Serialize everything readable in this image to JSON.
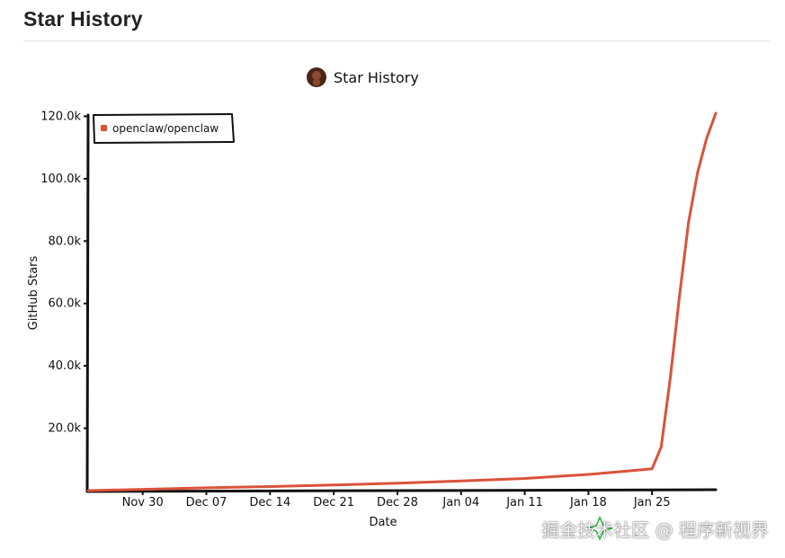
{
  "page": {
    "title": "Star History"
  },
  "chart_data": {
    "type": "line",
    "title": "Star History",
    "xlabel": "Date",
    "ylabel": "GitHub Stars",
    "x_tick_labels": [
      "Nov 30",
      "Dec 07",
      "Dec 14",
      "Dec 21",
      "Dec 28",
      "Jan 04",
      "Jan 11",
      "Jan 18",
      "Jan 25"
    ],
    "y_tick_labels": [
      "20.0k",
      "40.0k",
      "60.0k",
      "80.0k",
      "100.0k",
      "120.0k"
    ],
    "y_ticks": [
      20000,
      40000,
      60000,
      80000,
      100000,
      120000
    ],
    "ylim": [
      0,
      121000
    ],
    "legend_position": "top-left",
    "grid": false,
    "series": [
      {
        "name": "openclaw/openclaw",
        "color": "#d9533b",
        "points": [
          {
            "x": "2025-11-24",
            "y": 0
          },
          {
            "x": "2025-11-30",
            "y": 400
          },
          {
            "x": "2025-12-07",
            "y": 900
          },
          {
            "x": "2025-12-14",
            "y": 1300
          },
          {
            "x": "2025-12-21",
            "y": 1800
          },
          {
            "x": "2025-12-28",
            "y": 2400
          },
          {
            "x": "2026-01-04",
            "y": 3100
          },
          {
            "x": "2026-01-11",
            "y": 3900
          },
          {
            "x": "2026-01-18",
            "y": 5200
          },
          {
            "x": "2026-01-22",
            "y": 6200
          },
          {
            "x": "2026-01-25",
            "y": 7000
          },
          {
            "x": "2026-01-26",
            "y": 14000
          },
          {
            "x": "2026-01-27",
            "y": 36000
          },
          {
            "x": "2026-01-28",
            "y": 62000
          },
          {
            "x": "2026-01-29",
            "y": 86000
          },
          {
            "x": "2026-01-30",
            "y": 102000
          },
          {
            "x": "2026-01-31",
            "y": 113000
          },
          {
            "x": "2026-02-01",
            "y": 121000
          }
        ]
      }
    ]
  },
  "icons": {
    "title_avatar": "avatar-icon",
    "watermark_logo": "star-history-logo-icon"
  },
  "watermark": {
    "text": "掘金技术社区 @ 程序新视界"
  }
}
